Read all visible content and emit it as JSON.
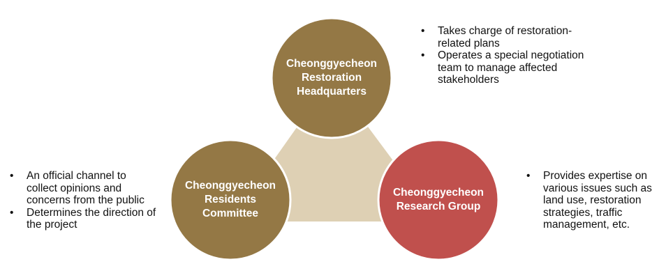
{
  "colors": {
    "olive": "#947845",
    "red": "#c0504d",
    "triangle": "#ded0b4",
    "ring": "#ffffff",
    "label": "#ffffff"
  },
  "nodes": {
    "headquarters": {
      "label": "Cheonggyecheon Restoration Headquarters"
    },
    "residents": {
      "label": "Cheonggyecheon Residents Committee"
    },
    "research": {
      "label": "Cheonggyecheon Research Group"
    }
  },
  "notes": {
    "headquarters": [
      "Takes charge of restoration-related plans",
      "Operates a special negotiation team to manage affected stakeholders"
    ],
    "residents": [
      "An official channel to collect opinions and concerns from the public",
      "Determines the direction of the project"
    ],
    "research": [
      "Provides expertise on various issues such as land use, restoration strategies, traffic management, etc."
    ]
  }
}
